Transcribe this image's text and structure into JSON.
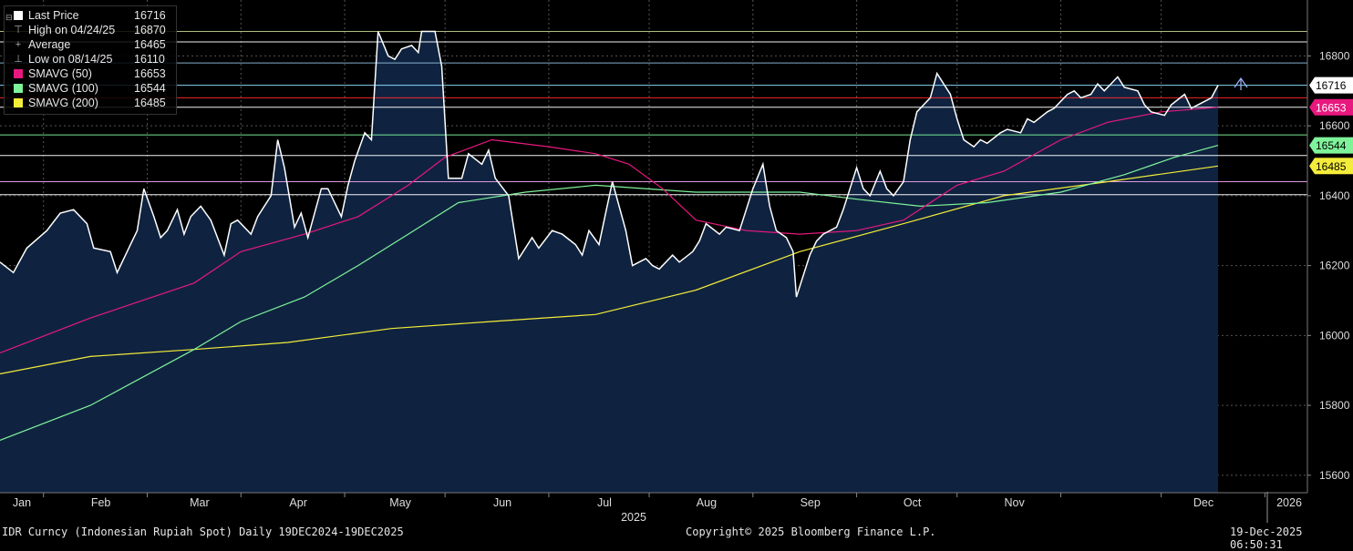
{
  "legend": {
    "rows": [
      {
        "label": "Last Price",
        "value": "16716",
        "swatch": "#ffffff",
        "glyph": ""
      },
      {
        "label": "High on 04/24/25",
        "value": "16870",
        "swatch": "",
        "glyph": "⊤"
      },
      {
        "label": "Average",
        "value": "16465",
        "swatch": "",
        "glyph": "+"
      },
      {
        "label": "Low on 08/14/25",
        "value": "16110",
        "swatch": "",
        "glyph": "⊥"
      },
      {
        "label": "SMAVG (50)",
        "value": "16653",
        "swatch": "#e8187f",
        "glyph": ""
      },
      {
        "label": "SMAVG (100)",
        "value": "16544",
        "swatch": "#7ff39a",
        "glyph": ""
      },
      {
        "label": "SMAVG (200)",
        "value": "16485",
        "swatch": "#f4ec3a",
        "glyph": ""
      }
    ]
  },
  "footer": {
    "left": "IDR Curncy (Indonesian Rupiah Spot) Daily 19DEC2024-19DEC2025",
    "center": "Copyright© 2025 Bloomberg Finance L.P.",
    "right": "19-Dec-2025 06:50:31"
  },
  "colors": {
    "background": "#000000",
    "area_fill": "#0f2340",
    "price": "#ffffff",
    "sma50": "#e8187f",
    "sma100": "#7ff39a",
    "sma200": "#f4ec3a"
  },
  "chart_data": {
    "type": "line",
    "ylim": [
      15550,
      16960
    ],
    "yticks": [
      15600,
      15800,
      16000,
      16200,
      16400,
      16600,
      16800
    ],
    "months": [
      "Jan",
      "Feb",
      "Mar",
      "Apr",
      "May",
      "Jun",
      "Jul",
      "Aug",
      "Sep",
      "Oct",
      "Nov",
      "Dec",
      "2026"
    ],
    "year_label": "2025",
    "price_tags": [
      {
        "value": 16716,
        "label": "16716",
        "bg": "#ffffff",
        "fg": "#000000"
      },
      {
        "value": 16653,
        "label": "16653",
        "bg": "#e8187f",
        "fg": "#ffffff"
      },
      {
        "value": 16544,
        "label": "16544",
        "bg": "#7ff39a",
        "fg": "#000000"
      },
      {
        "value": 16485,
        "label": "16485",
        "bg": "#f4ec3a",
        "fg": "#000000"
      }
    ],
    "hlines": [
      {
        "value": 16870,
        "color": "#b9c98a"
      },
      {
        "value": 16840,
        "color": "#ffffff"
      },
      {
        "value": 16780,
        "color": "#8fb9d9"
      },
      {
        "value": 16716,
        "color": "#8fe0ff"
      },
      {
        "value": 16680,
        "color": "#ff2a2a"
      },
      {
        "value": 16653,
        "color": "#ffffff"
      },
      {
        "value": 16574,
        "color": "#7ff39a"
      },
      {
        "value": 16515,
        "color": "#ffffff"
      },
      {
        "value": 16440,
        "color": "#e8a0e8"
      },
      {
        "value": 16403,
        "color": "#ffffff"
      }
    ],
    "series": [
      {
        "name": "Last Price",
        "color": "#ffffff",
        "points": [
          [
            "2024-12-19",
            16210
          ],
          [
            "2024-12-23",
            16180
          ],
          [
            "2024-12-27",
            16250
          ],
          [
            "2025-01-02",
            16300
          ],
          [
            "2025-01-06",
            16350
          ],
          [
            "2025-01-10",
            16360
          ],
          [
            "2025-01-14",
            16320
          ],
          [
            "2025-01-16",
            16250
          ],
          [
            "2025-01-21",
            16240
          ],
          [
            "2025-01-23",
            16180
          ],
          [
            "2025-01-27",
            16260
          ],
          [
            "2025-01-29",
            16300
          ],
          [
            "2025-01-31",
            16420
          ],
          [
            "2025-02-03",
            16340
          ],
          [
            "2025-02-05",
            16280
          ],
          [
            "2025-02-07",
            16300
          ],
          [
            "2025-02-10",
            16360
          ],
          [
            "2025-02-12",
            16290
          ],
          [
            "2025-02-14",
            16340
          ],
          [
            "2025-02-17",
            16370
          ],
          [
            "2025-02-20",
            16330
          ],
          [
            "2025-02-24",
            16230
          ],
          [
            "2025-02-26",
            16320
          ],
          [
            "2025-02-28",
            16330
          ],
          [
            "2025-03-04",
            16290
          ],
          [
            "2025-03-06",
            16340
          ],
          [
            "2025-03-10",
            16400
          ],
          [
            "2025-03-12",
            16560
          ],
          [
            "2025-03-14",
            16480
          ],
          [
            "2025-03-17",
            16310
          ],
          [
            "2025-03-19",
            16350
          ],
          [
            "2025-03-21",
            16280
          ],
          [
            "2025-03-25",
            16420
          ],
          [
            "2025-03-27",
            16420
          ],
          [
            "2025-03-31",
            16340
          ],
          [
            "2025-04-02",
            16430
          ],
          [
            "2025-04-04",
            16500
          ],
          [
            "2025-04-07",
            16580
          ],
          [
            "2025-04-09",
            16560
          ],
          [
            "2025-04-11",
            16870
          ],
          [
            "2025-04-14",
            16800
          ],
          [
            "2025-04-16",
            16790
          ],
          [
            "2025-04-18",
            16820
          ],
          [
            "2025-04-21",
            16830
          ],
          [
            "2025-04-23",
            16810
          ],
          [
            "2025-04-24",
            16870
          ],
          [
            "2025-04-28",
            16870
          ],
          [
            "2025-04-30",
            16770
          ],
          [
            "2025-05-02",
            16450
          ],
          [
            "2025-05-06",
            16450
          ],
          [
            "2025-05-08",
            16520
          ],
          [
            "2025-05-12",
            16490
          ],
          [
            "2025-05-14",
            16530
          ],
          [
            "2025-05-16",
            16450
          ],
          [
            "2025-05-20",
            16400
          ],
          [
            "2025-05-23",
            16220
          ],
          [
            "2025-05-27",
            16280
          ],
          [
            "2025-05-29",
            16250
          ],
          [
            "2025-06-02",
            16300
          ],
          [
            "2025-06-05",
            16290
          ],
          [
            "2025-06-09",
            16260
          ],
          [
            "2025-06-11",
            16230
          ],
          [
            "2025-06-13",
            16300
          ],
          [
            "2025-06-16",
            16260
          ],
          [
            "2025-06-18",
            16350
          ],
          [
            "2025-06-20",
            16440
          ],
          [
            "2025-06-24",
            16300
          ],
          [
            "2025-06-26",
            16200
          ],
          [
            "2025-06-30",
            16220
          ],
          [
            "2025-07-02",
            16200
          ],
          [
            "2025-07-04",
            16190
          ],
          [
            "2025-07-08",
            16230
          ],
          [
            "2025-07-10",
            16210
          ],
          [
            "2025-07-14",
            16240
          ],
          [
            "2025-07-16",
            16270
          ],
          [
            "2025-07-18",
            16320
          ],
          [
            "2025-07-22",
            16290
          ],
          [
            "2025-07-24",
            16310
          ],
          [
            "2025-07-28",
            16300
          ],
          [
            "2025-07-30",
            16360
          ],
          [
            "2025-08-01",
            16420
          ],
          [
            "2025-08-04",
            16490
          ],
          [
            "2025-08-06",
            16370
          ],
          [
            "2025-08-08",
            16300
          ],
          [
            "2025-08-11",
            16280
          ],
          [
            "2025-08-13",
            16240
          ],
          [
            "2025-08-14",
            16110
          ],
          [
            "2025-08-18",
            16230
          ],
          [
            "2025-08-20",
            16270
          ],
          [
            "2025-08-22",
            16290
          ],
          [
            "2025-08-26",
            16310
          ],
          [
            "2025-08-28",
            16360
          ],
          [
            "2025-09-01",
            16480
          ],
          [
            "2025-09-03",
            16420
          ],
          [
            "2025-09-05",
            16400
          ],
          [
            "2025-09-08",
            16470
          ],
          [
            "2025-09-10",
            16420
          ],
          [
            "2025-09-12",
            16400
          ],
          [
            "2025-09-15",
            16440
          ],
          [
            "2025-09-17",
            16560
          ],
          [
            "2025-09-19",
            16640
          ],
          [
            "2025-09-23",
            16680
          ],
          [
            "2025-09-25",
            16750
          ],
          [
            "2025-09-29",
            16690
          ],
          [
            "2025-10-01",
            16620
          ],
          [
            "2025-10-03",
            16560
          ],
          [
            "2025-10-06",
            16540
          ],
          [
            "2025-10-08",
            16560
          ],
          [
            "2025-10-10",
            16550
          ],
          [
            "2025-10-14",
            16580
          ],
          [
            "2025-10-16",
            16590
          ],
          [
            "2025-10-20",
            16580
          ],
          [
            "2025-10-22",
            16620
          ],
          [
            "2025-10-24",
            16610
          ],
          [
            "2025-10-28",
            16640
          ],
          [
            "2025-10-30",
            16650
          ],
          [
            "2025-11-03",
            16690
          ],
          [
            "2025-11-05",
            16700
          ],
          [
            "2025-11-07",
            16680
          ],
          [
            "2025-11-10",
            16690
          ],
          [
            "2025-11-12",
            16720
          ],
          [
            "2025-11-14",
            16700
          ],
          [
            "2025-11-18",
            16740
          ],
          [
            "2025-11-20",
            16710
          ],
          [
            "2025-11-24",
            16700
          ],
          [
            "2025-11-26",
            16660
          ],
          [
            "2025-11-28",
            16640
          ],
          [
            "2025-12-02",
            16630
          ],
          [
            "2025-12-04",
            16660
          ],
          [
            "2025-12-08",
            16690
          ],
          [
            "2025-12-10",
            16650
          ],
          [
            "2025-12-12",
            16660
          ],
          [
            "2025-12-16",
            16680
          ],
          [
            "2025-12-18",
            16716
          ]
        ]
      },
      {
        "name": "SMAVG (50)",
        "color": "#e8187f",
        "points": [
          [
            "2024-12-19",
            15950
          ],
          [
            "2025-01-15",
            16050
          ],
          [
            "2025-02-15",
            16150
          ],
          [
            "2025-03-01",
            16240
          ],
          [
            "2025-03-20",
            16290
          ],
          [
            "2025-04-05",
            16340
          ],
          [
            "2025-04-20",
            16430
          ],
          [
            "2025-05-01",
            16510
          ],
          [
            "2025-05-15",
            16560
          ],
          [
            "2025-06-01",
            16540
          ],
          [
            "2025-06-15",
            16520
          ],
          [
            "2025-06-25",
            16490
          ],
          [
            "2025-07-05",
            16420
          ],
          [
            "2025-07-15",
            16330
          ],
          [
            "2025-07-30",
            16300
          ],
          [
            "2025-08-15",
            16290
          ],
          [
            "2025-09-01",
            16300
          ],
          [
            "2025-09-15",
            16330
          ],
          [
            "2025-10-01",
            16430
          ],
          [
            "2025-10-15",
            16470
          ],
          [
            "2025-11-01",
            16560
          ],
          [
            "2025-11-15",
            16610
          ],
          [
            "2025-12-01",
            16640
          ],
          [
            "2025-12-18",
            16653
          ]
        ]
      },
      {
        "name": "SMAVG (100)",
        "color": "#7ff39a",
        "points": [
          [
            "2024-12-19",
            15700
          ],
          [
            "2025-01-15",
            15800
          ],
          [
            "2025-02-15",
            15960
          ],
          [
            "2025-03-01",
            16040
          ],
          [
            "2025-03-20",
            16110
          ],
          [
            "2025-04-05",
            16200
          ],
          [
            "2025-04-20",
            16290
          ],
          [
            "2025-05-05",
            16380
          ],
          [
            "2025-05-25",
            16410
          ],
          [
            "2025-06-15",
            16430
          ],
          [
            "2025-07-15",
            16410
          ],
          [
            "2025-08-01",
            16410
          ],
          [
            "2025-08-15",
            16410
          ],
          [
            "2025-09-01",
            16390
          ],
          [
            "2025-09-20",
            16370
          ],
          [
            "2025-10-10",
            16380
          ],
          [
            "2025-11-01",
            16410
          ],
          [
            "2025-11-20",
            16460
          ],
          [
            "2025-12-05",
            16510
          ],
          [
            "2025-12-18",
            16544
          ]
        ]
      },
      {
        "name": "SMAVG (200)",
        "color": "#f4ec3a",
        "points": [
          [
            "2024-12-19",
            15890
          ],
          [
            "2025-01-15",
            15940
          ],
          [
            "2025-02-15",
            15960
          ],
          [
            "2025-03-15",
            15980
          ],
          [
            "2025-04-15",
            16020
          ],
          [
            "2025-05-15",
            16040
          ],
          [
            "2025-06-15",
            16060
          ],
          [
            "2025-07-15",
            16130
          ],
          [
            "2025-08-15",
            16240
          ],
          [
            "2025-09-15",
            16320
          ],
          [
            "2025-10-15",
            16400
          ],
          [
            "2025-11-15",
            16440
          ],
          [
            "2025-12-18",
            16485
          ]
        ]
      }
    ]
  }
}
